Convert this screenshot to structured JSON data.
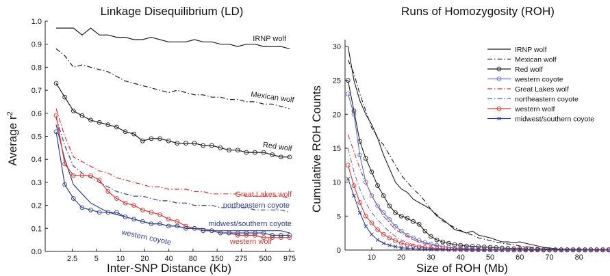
{
  "colors": {
    "black": "#1a1a1a",
    "blue": "#2d3e8f",
    "red": "#e03030",
    "western_coyote_blue": "#5a70c8"
  },
  "chart_data": [
    {
      "type": "line",
      "title": "Linkage Disequilibrium (LD)",
      "xlabel": "Inter-SNP Distance (Kb)",
      "ylabel": "Average r²",
      "x_tick_labels": [
        "2.5",
        "5",
        "10",
        "20",
        "40",
        "80",
        "150",
        "275",
        "500",
        "975"
      ],
      "y_tick_labels": [
        "0.0",
        "0.1",
        "0.2",
        "0.3",
        "0.4",
        "0.5",
        "0.6",
        "0.7",
        "0.8",
        "0.9",
        "1.0"
      ],
      "y_tick_values": [
        0.0,
        0.1,
        0.2,
        0.3,
        0.4,
        0.5,
        0.6,
        0.7,
        0.8,
        0.9,
        1.0
      ],
      "ylim": [
        0,
        1.0
      ],
      "grid": false,
      "x_point_count": 28,
      "series": [
        {
          "name": "IRNP wolf",
          "color": "#1a1a1a",
          "dash": "solid",
          "marker": "none",
          "values": [
            0.97,
            0.97,
            0.97,
            0.94,
            0.97,
            0.94,
            0.94,
            0.93,
            0.93,
            0.92,
            0.92,
            0.93,
            0.92,
            0.91,
            0.91,
            0.91,
            0.92,
            0.91,
            0.91,
            0.9,
            0.9,
            0.89,
            0.9,
            0.9,
            0.89,
            0.89,
            0.89,
            0.88
          ]
        },
        {
          "name": "Mexican wolf",
          "color": "#1a1a1a",
          "dash": "dashdot",
          "marker": "none",
          "values": [
            0.88,
            0.85,
            0.8,
            0.81,
            0.8,
            0.79,
            0.78,
            0.76,
            0.74,
            0.73,
            0.72,
            0.71,
            0.7,
            0.69,
            0.7,
            0.69,
            0.68,
            0.68,
            0.67,
            0.67,
            0.66,
            0.66,
            0.65,
            0.65,
            0.64,
            0.64,
            0.63,
            0.62
          ]
        },
        {
          "name": "Red wolf",
          "color": "#1a1a1a",
          "dash": "solid",
          "marker": "circle",
          "values": [
            0.73,
            0.67,
            0.61,
            0.59,
            0.57,
            0.56,
            0.55,
            0.54,
            0.52,
            0.51,
            0.48,
            0.49,
            0.49,
            0.48,
            0.47,
            0.47,
            0.47,
            0.46,
            0.46,
            0.45,
            0.44,
            0.44,
            0.43,
            0.43,
            0.43,
            0.42,
            0.41,
            0.41
          ]
        },
        {
          "name": "Great Lakes wolf",
          "color": "#e03030",
          "dash": "dashdot",
          "marker": "none",
          "values": [
            0.62,
            0.5,
            0.41,
            0.39,
            0.37,
            0.35,
            0.34,
            0.32,
            0.31,
            0.3,
            0.29,
            0.28,
            0.28,
            0.27,
            0.27,
            0.27,
            0.26,
            0.26,
            0.25,
            0.25,
            0.25,
            0.25,
            0.24,
            0.24,
            0.24,
            0.24,
            0.24,
            0.23
          ]
        },
        {
          "name": "northeastern coyote",
          "color": "#2d3e8f",
          "dash": "dashdot",
          "marker": "none",
          "values": [
            0.58,
            0.46,
            0.37,
            0.34,
            0.32,
            0.3,
            0.28,
            0.26,
            0.25,
            0.24,
            0.24,
            0.23,
            0.22,
            0.22,
            0.21,
            0.21,
            0.2,
            0.2,
            0.2,
            0.19,
            0.19,
            0.19,
            0.19,
            0.18,
            0.18,
            0.18,
            0.18,
            0.17
          ]
        },
        {
          "name": "midwest/southern coyote",
          "color": "#2d3e8f",
          "dash": "solid",
          "marker": "none",
          "values": [
            0.55,
            0.4,
            0.29,
            0.25,
            0.21,
            0.19,
            0.17,
            0.16,
            0.15,
            0.14,
            0.13,
            0.12,
            0.12,
            0.11,
            0.11,
            0.1,
            0.1,
            0.1,
            0.09,
            0.09,
            0.09,
            0.09,
            0.09,
            0.09,
            0.09,
            0.09,
            0.09,
            0.08
          ]
        },
        {
          "name": "western wolf",
          "color": "#e03030",
          "dash": "solid",
          "marker": "circle",
          "values": [
            0.59,
            0.38,
            0.33,
            0.33,
            0.33,
            0.31,
            0.26,
            0.23,
            0.21,
            0.2,
            0.18,
            0.17,
            0.16,
            0.14,
            0.13,
            0.11,
            0.1,
            0.09,
            0.09,
            0.08,
            0.08,
            0.07,
            0.07,
            0.07,
            0.06,
            0.06,
            0.06,
            0.06
          ]
        },
        {
          "name": "western coyote",
          "color": "#2d3e8f",
          "dash": "solid",
          "marker": "circle",
          "values": [
            0.52,
            0.29,
            0.23,
            0.19,
            0.18,
            0.17,
            0.17,
            0.17,
            0.15,
            0.14,
            0.13,
            0.12,
            0.12,
            0.11,
            0.11,
            0.1,
            0.1,
            0.09,
            0.09,
            0.08,
            0.08,
            0.08,
            0.08,
            0.08,
            0.08,
            0.07,
            0.07,
            0.07
          ]
        }
      ],
      "annotations": [
        {
          "text": "IRNP wolf",
          "color": "#1a1a1a"
        },
        {
          "text": "Mexican wolf",
          "color": "#1a1a1a"
        },
        {
          "text": "Red wolf",
          "color": "#1a1a1a"
        },
        {
          "text": "Great Lakes wolf",
          "color": "#e03030"
        },
        {
          "text": "northeastern coyote",
          "color": "#2d3e8f"
        },
        {
          "text": "midwest/southern coyote",
          "color": "#2d3e8f"
        },
        {
          "text": "western coyote",
          "color": "#2d3e8f"
        },
        {
          "text": "western wolf",
          "color": "#e03030"
        }
      ]
    },
    {
      "type": "line",
      "title": "Runs of Homozygosity (ROH)",
      "xlabel": "Size of ROH (Mb)",
      "ylabel": "Cumulative ROH Counts",
      "x_tick_values": [
        10,
        20,
        30,
        40,
        50,
        60,
        70,
        80
      ],
      "y_tick_values": [
        0,
        5,
        10,
        15,
        20,
        25,
        30
      ],
      "xlim": [
        1,
        90
      ],
      "ylim": [
        0,
        31
      ],
      "grid": false,
      "legend": "top-right",
      "x": [
        2,
        4,
        6,
        8,
        10,
        12,
        14,
        16,
        18,
        20,
        22,
        24,
        26,
        28,
        30,
        32,
        34,
        36,
        38,
        40,
        42,
        44,
        46,
        48,
        50,
        52,
        54,
        56,
        58,
        60,
        62,
        64,
        66,
        68,
        70,
        72,
        74,
        76,
        78,
        80,
        82,
        84,
        86,
        88,
        90
      ],
      "series": [
        {
          "name": "IRNP wolf",
          "color": "#1a1a1a",
          "dash": "solid",
          "marker": "none",
          "values": [
            30,
            25,
            22,
            20,
            18.5,
            16.5,
            14,
            12,
            10,
            9,
            8.5,
            7.5,
            7,
            6.5,
            6,
            5,
            4.5,
            3.8,
            3,
            2.8,
            2.5,
            2.8,
            2.2,
            2,
            1.8,
            1.5,
            1.2,
            1.2,
            1.1,
            1.2,
            1,
            0.8,
            0.6,
            0.4,
            0.3,
            0.2,
            0.1,
            0.1,
            0.1,
            0.05,
            0.05,
            0.05,
            0,
            0,
            0
          ]
        },
        {
          "name": "Mexican wolf",
          "color": "#1a1a1a",
          "dash": "dashdot",
          "marker": "none",
          "values": [
            28,
            26,
            23,
            20.5,
            18,
            16.5,
            15.5,
            14,
            12.5,
            11,
            10,
            9,
            8.2,
            7.2,
            6,
            5.2,
            4.3,
            3.8,
            3.3,
            2.9,
            2.5,
            2.2,
            1.8,
            1.6,
            1.4,
            1.2,
            1,
            0.9,
            0.8,
            0.6,
            0.5,
            0.4,
            0.3,
            0.2,
            0.15,
            0.1,
            0.05,
            0.05,
            0,
            0,
            0,
            0,
            0,
            0,
            0
          ]
        },
        {
          "name": "Red wolf",
          "color": "#1a1a1a",
          "dash": "solid",
          "marker": "circle",
          "values": [
            25,
            20.5,
            16,
            13.5,
            11.5,
            9.5,
            8,
            6.5,
            5.5,
            5,
            4.7,
            4.2,
            3.8,
            2.8,
            2,
            1.5,
            1.2,
            1,
            0.8,
            0.7,
            0.6,
            0.55,
            0.5,
            0.45,
            0.4,
            0.35,
            0.3,
            0.25,
            0.2,
            0.2,
            0.15,
            0.1,
            0.1,
            0.05,
            0.05,
            0.05,
            0.05,
            0.05,
            0.05,
            0.05,
            0.05,
            0.05,
            0.05,
            0.05,
            0.05
          ]
        },
        {
          "name": "western coyote",
          "color": "#5a70c8",
          "dash": "solid",
          "marker": "circle",
          "values": [
            23,
            20,
            14,
            10,
            8,
            6.5,
            5.5,
            4.5,
            3.5,
            2.8,
            2.2,
            1.8,
            1.4,
            1.1,
            0.9,
            0.7,
            0.5,
            0.4,
            0.3,
            0.25,
            0.2,
            0.15,
            0.1,
            0.08,
            0.06,
            0.05,
            0.04,
            0.03,
            0.02,
            0.02,
            0.01,
            0.01,
            0.01,
            0,
            0,
            0,
            0,
            0,
            0,
            0,
            0,
            0,
            0,
            0,
            0
          ]
        },
        {
          "name": "Great Lakes wolf",
          "color": "#e03030",
          "dash": "dashdot",
          "marker": "none",
          "values": [
            17,
            14.5,
            12,
            10,
            8,
            6.5,
            5,
            4,
            3,
            2.5,
            2,
            1.5,
            1.2,
            1,
            0.8,
            0.6,
            0.5,
            0.4,
            0.3,
            0.2,
            0.15,
            0.1,
            0.08,
            0.06,
            0.05,
            0.04,
            0.03,
            0.02,
            0.02,
            0.01,
            0.01,
            0,
            0,
            0,
            0,
            0,
            0,
            0,
            0,
            0,
            0,
            0,
            0,
            0,
            0
          ]
        },
        {
          "name": "northeastern coyote",
          "color": "#5a70c8",
          "dash": "dashdot",
          "marker": "none",
          "values": [
            15,
            11.5,
            9,
            7,
            5.5,
            4.5,
            3.5,
            2.7,
            2,
            1.5,
            1.1,
            0.8,
            0.6,
            0.45,
            0.35,
            0.25,
            0.2,
            0.15,
            0.1,
            0.08,
            0.06,
            0.05,
            0.04,
            0.03,
            0.02,
            0.01,
            0.01,
            0,
            0,
            0,
            0,
            0,
            0,
            0,
            0,
            0,
            0,
            0,
            0,
            0,
            0,
            0,
            0,
            0,
            0
          ]
        },
        {
          "name": "western wolf",
          "color": "#e03030",
          "dash": "solid",
          "marker": "circle",
          "values": [
            12.5,
            9.5,
            7,
            5,
            4,
            3,
            2.3,
            1.8,
            1.4,
            1,
            0.8,
            0.6,
            0.45,
            0.35,
            0.25,
            0.2,
            0.15,
            0.1,
            0.08,
            0.06,
            0.05,
            0.04,
            0.03,
            0.02,
            0.02,
            0.01,
            0.01,
            0,
            0,
            0,
            0,
            0,
            0,
            0,
            0,
            0,
            0,
            0,
            0,
            0,
            0,
            0,
            0,
            0,
            0
          ]
        },
        {
          "name": "midwest/southern coyote",
          "color": "#2d3e8f",
          "dash": "solid",
          "marker": "x",
          "values": [
            10.5,
            8,
            5.5,
            3.5,
            2.3,
            1.5,
            1,
            0.7,
            0.5,
            0.35,
            0.25,
            0.2,
            0.15,
            0.1,
            0.08,
            0.06,
            0.05,
            0.04,
            0.03,
            0.02,
            0.02,
            0.01,
            0.01,
            0,
            0,
            0,
            0,
            0,
            0,
            0,
            0,
            0,
            0,
            0,
            0,
            0,
            0,
            0,
            0,
            0,
            0,
            0,
            0,
            0,
            0
          ]
        }
      ]
    }
  ]
}
